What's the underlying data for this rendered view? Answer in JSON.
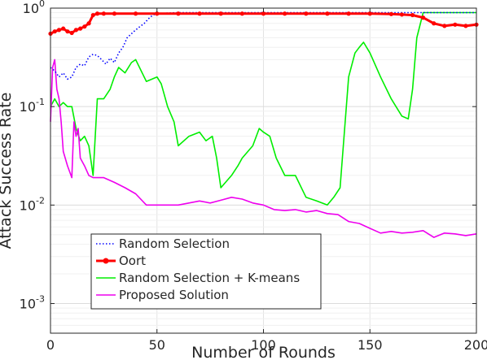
{
  "chart_data": {
    "type": "line",
    "xlabel": "Number of Rounds",
    "ylabel": "Attack Success Rate",
    "xlim": [
      0,
      200
    ],
    "ylim": [
      0.0005,
      1
    ],
    "yscale": "log",
    "grid": true,
    "legend_position": "bottom-left",
    "x_ticks": [
      {
        "value": 0,
        "label": "0"
      },
      {
        "value": 50,
        "label": "50"
      },
      {
        "value": 100,
        "label": "100"
      },
      {
        "value": 150,
        "label": "150"
      },
      {
        "value": 200,
        "label": "200"
      }
    ],
    "y_ticks": [
      {
        "value": 0.001,
        "base": "10",
        "exp": "-3"
      },
      {
        "value": 0.01,
        "base": "10",
        "exp": "-2"
      },
      {
        "value": 0.1,
        "base": "10",
        "exp": "-1"
      },
      {
        "value": 1,
        "base": "10",
        "exp": "0"
      }
    ],
    "series": [
      {
        "name": "Random Selection",
        "color": "#0000ff",
        "style": "dotted",
        "marker": "none",
        "x": [
          0,
          2,
          4,
          6,
          8,
          10,
          12,
          14,
          16,
          18,
          20,
          22,
          24,
          26,
          28,
          30,
          32,
          34,
          36,
          38,
          40,
          42,
          44,
          46,
          48,
          50,
          60,
          80,
          100,
          120,
          140,
          160,
          170,
          175,
          200
        ],
        "y": [
          0.25,
          0.23,
          0.2,
          0.22,
          0.19,
          0.2,
          0.25,
          0.27,
          0.26,
          0.32,
          0.34,
          0.33,
          0.3,
          0.27,
          0.31,
          0.28,
          0.35,
          0.4,
          0.5,
          0.55,
          0.6,
          0.65,
          0.7,
          0.78,
          0.85,
          0.88,
          0.9,
          0.9,
          0.9,
          0.9,
          0.9,
          0.9,
          0.9,
          0.9,
          0.9
        ]
      },
      {
        "name": "Oort",
        "color": "#ff0000",
        "style": "solid",
        "marker": "dot",
        "x": [
          0,
          2,
          4,
          6,
          8,
          10,
          12,
          14,
          16,
          18,
          20,
          22,
          25,
          30,
          40,
          50,
          60,
          70,
          80,
          90,
          100,
          110,
          120,
          130,
          140,
          150,
          160,
          165,
          170,
          175,
          180,
          185,
          190,
          195,
          200
        ],
        "y": [
          0.55,
          0.58,
          0.6,
          0.62,
          0.58,
          0.56,
          0.6,
          0.62,
          0.65,
          0.7,
          0.85,
          0.88,
          0.88,
          0.88,
          0.88,
          0.88,
          0.88,
          0.88,
          0.88,
          0.88,
          0.88,
          0.88,
          0.88,
          0.88,
          0.88,
          0.88,
          0.87,
          0.86,
          0.85,
          0.8,
          0.7,
          0.66,
          0.68,
          0.66,
          0.68
        ]
      },
      {
        "name": "Random Selection + K-means",
        "color": "#00ee00",
        "style": "solid",
        "marker": "none",
        "x": [
          0,
          2,
          4,
          6,
          8,
          10,
          12,
          14,
          16,
          18,
          20,
          22,
          25,
          28,
          30,
          32,
          35,
          38,
          40,
          45,
          50,
          52,
          55,
          58,
          60,
          65,
          70,
          73,
          76,
          78,
          80,
          85,
          88,
          90,
          95,
          98,
          100,
          103,
          106,
          110,
          115,
          120,
          125,
          130,
          133,
          136,
          140,
          143,
          145,
          147,
          150,
          155,
          160,
          165,
          168,
          170,
          172,
          175,
          180,
          190,
          200
        ],
        "y": [
          0.1,
          0.12,
          0.1,
          0.11,
          0.1,
          0.1,
          0.06,
          0.045,
          0.05,
          0.04,
          0.02,
          0.12,
          0.12,
          0.15,
          0.2,
          0.25,
          0.22,
          0.28,
          0.3,
          0.18,
          0.2,
          0.17,
          0.1,
          0.07,
          0.04,
          0.05,
          0.055,
          0.045,
          0.05,
          0.03,
          0.015,
          0.02,
          0.025,
          0.03,
          0.04,
          0.06,
          0.055,
          0.05,
          0.03,
          0.02,
          0.02,
          0.012,
          0.011,
          0.01,
          0.012,
          0.015,
          0.2,
          0.35,
          0.4,
          0.45,
          0.35,
          0.2,
          0.12,
          0.08,
          0.075,
          0.15,
          0.5,
          0.9,
          0.9,
          0.9,
          0.9
        ]
      },
      {
        "name": "Proposed Solution",
        "color": "#ee00ee",
        "style": "solid",
        "marker": "none",
        "x": [
          0,
          1,
          2,
          3,
          4,
          5,
          6,
          8,
          10,
          11,
          12,
          13,
          14,
          16,
          18,
          20,
          25,
          30,
          35,
          40,
          45,
          50,
          55,
          60,
          65,
          70,
          75,
          80,
          85,
          90,
          95,
          100,
          105,
          110,
          115,
          120,
          125,
          130,
          135,
          140,
          145,
          150,
          155,
          160,
          165,
          170,
          175,
          180,
          185,
          190,
          195,
          200
        ],
        "y": [
          0.07,
          0.25,
          0.3,
          0.15,
          0.12,
          0.07,
          0.035,
          0.025,
          0.019,
          0.07,
          0.05,
          0.06,
          0.03,
          0.025,
          0.02,
          0.019,
          0.019,
          0.017,
          0.015,
          0.013,
          0.01,
          0.01,
          0.01,
          0.01,
          0.0105,
          0.011,
          0.0105,
          0.0112,
          0.012,
          0.0115,
          0.0105,
          0.01,
          0.009,
          0.0088,
          0.009,
          0.0085,
          0.0088,
          0.0082,
          0.008,
          0.0068,
          0.0065,
          0.0058,
          0.0052,
          0.0054,
          0.0052,
          0.0053,
          0.0055,
          0.0047,
          0.0052,
          0.0051,
          0.0049,
          0.0051
        ]
      }
    ]
  }
}
